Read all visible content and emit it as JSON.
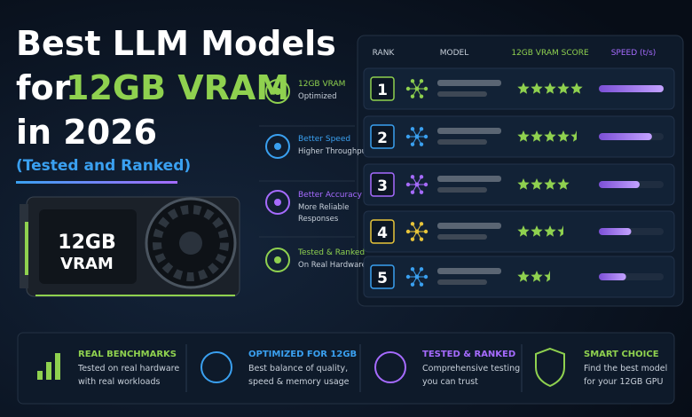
{
  "title": {
    "line1": "Best LLM Models",
    "line2a": "for",
    "line2b": "12GB VRAM",
    "line3": "in 2026",
    "subtitle": "(Tested and Ranked)"
  },
  "gpu_label": {
    "line1": "12GB",
    "line2": "VRAM"
  },
  "features": [
    {
      "title": "12GB VRAM",
      "desc": [
        "Optimized"
      ],
      "color": "#8fd14f"
    },
    {
      "title": "Better Speed",
      "desc": [
        "Higher Throughput"
      ],
      "color": "#3aa0f0"
    },
    {
      "title": "Better Accuracy",
      "desc": [
        "More Reliable",
        "Responses"
      ],
      "color": "#a66bff"
    },
    {
      "title": "Tested & Ranked",
      "desc": [
        "On Real Hardware"
      ],
      "color": "#8fd14f"
    }
  ],
  "table": {
    "headers": [
      "RANK",
      "MODEL",
      "12GB VRAM SCORE",
      "SPEED (t/s)"
    ],
    "rows": [
      {
        "rank": "1",
        "score": 5,
        "speed": 1.0,
        "color": "#8fd14f"
      },
      {
        "rank": "2",
        "score": 4.5,
        "speed": 0.82,
        "color": "#3aa0f0"
      },
      {
        "rank": "3",
        "score": 4,
        "speed": 0.63,
        "color": "#a66bff"
      },
      {
        "rank": "4",
        "score": 3.5,
        "speed": 0.5,
        "color": "#e8c53a"
      },
      {
        "rank": "5",
        "score": 2.5,
        "speed": 0.42,
        "color": "#3aa0f0"
      }
    ]
  },
  "benefits": [
    {
      "title": "REAL BENCHMARKS",
      "desc": [
        "Tested on real hardware",
        "with real workloads"
      ],
      "color": "#8fd14f"
    },
    {
      "title": "OPTIMIZED FOR 12GB",
      "desc": [
        "Best balance of quality,",
        "speed & memory usage"
      ],
      "color": "#3aa0f0"
    },
    {
      "title": "TESTED & RANKED",
      "desc": [
        "Comprehensive testing",
        "you can trust"
      ],
      "color": "#a66bff"
    },
    {
      "title": "SMART CHOICE",
      "desc": [
        "Find the best model",
        "for your 12GB GPU"
      ],
      "color": "#8fd14f"
    }
  ]
}
